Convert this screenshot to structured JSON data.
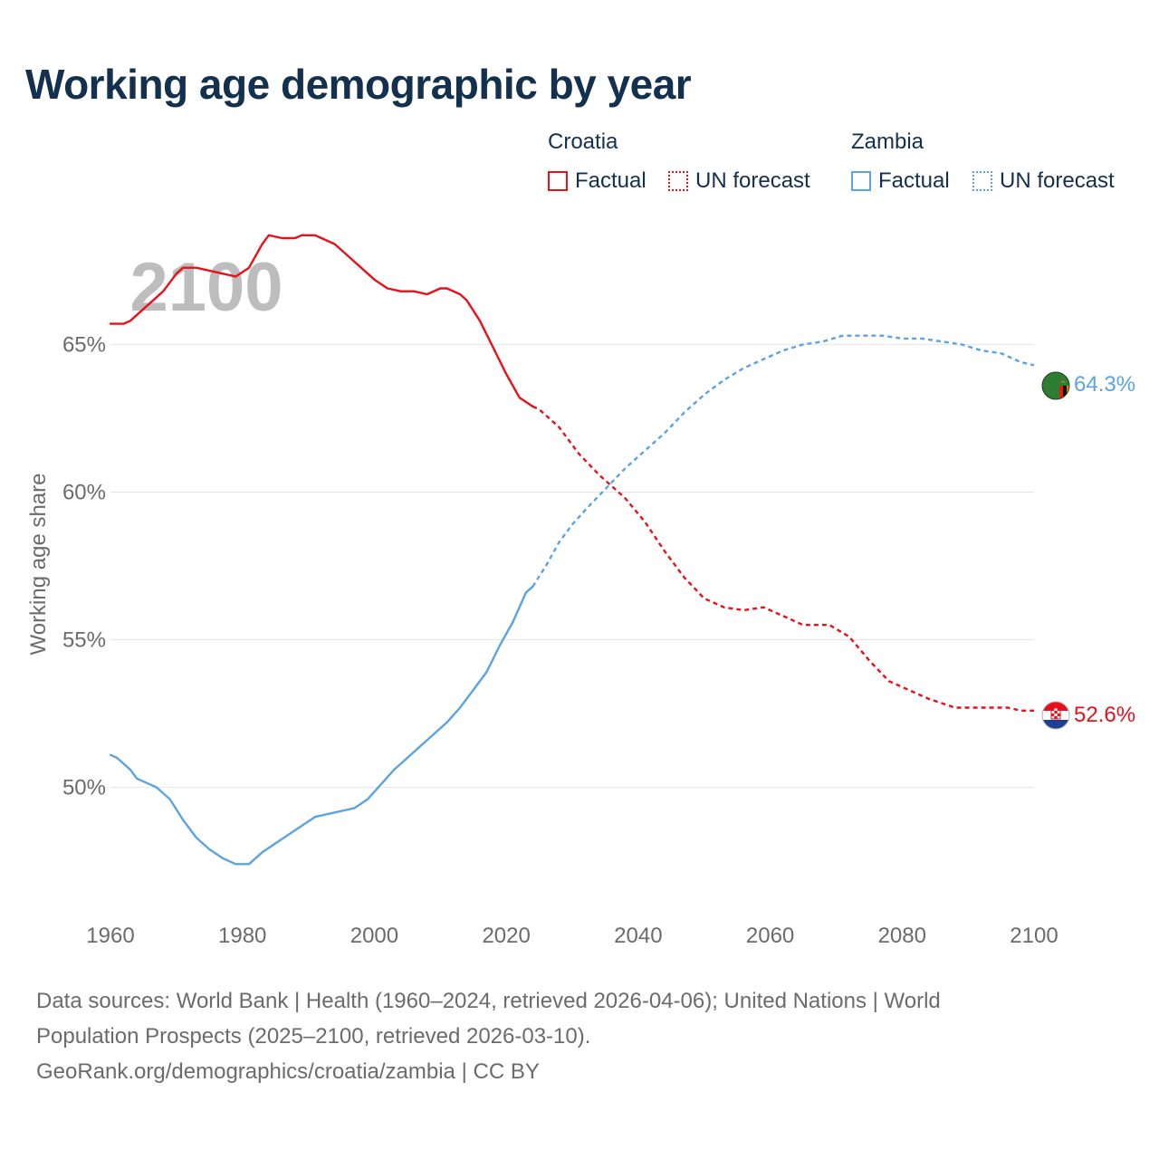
{
  "page": {
    "title": "Working age demographic by year"
  },
  "legend": {
    "groups": [
      {
        "country": "Croatia",
        "factual_label": "Factual",
        "forecast_label": "UN forecast",
        "color": "#e8111a"
      },
      {
        "country": "Zambia",
        "factual_label": "Factual",
        "forecast_label": "UN forecast",
        "color": "#5ba3e3"
      }
    ]
  },
  "chart_data": {
    "type": "line",
    "title": "Working age demographic by year",
    "ylabel": "Working age share",
    "xlabel": "",
    "year_label": "2100",
    "xlim": [
      1960,
      2100
    ],
    "ylim": [
      46.0,
      69.0
    ],
    "x_ticks": [
      1960,
      1980,
      2000,
      2020,
      2040,
      2060,
      2080,
      2100
    ],
    "x_tick_labels": [
      "1960",
      "1980",
      "2000",
      "2020",
      "2040",
      "2060",
      "2080",
      "2100"
    ],
    "y_ticks": [
      50,
      55,
      60,
      65
    ],
    "y_tick_labels": [
      "50%",
      "55%",
      "60%",
      "65%"
    ],
    "grid": "horizontal",
    "factual_end_year": 2024,
    "series": [
      {
        "name": "Croatia",
        "color": "#e8111a",
        "end_label": "52.6%",
        "flag": "croatia-flag-icon",
        "points": [
          [
            1960,
            65.7
          ],
          [
            1962,
            65.7
          ],
          [
            1963,
            65.8
          ],
          [
            1965,
            66.2
          ],
          [
            1968,
            66.8
          ],
          [
            1970,
            67.4
          ],
          [
            1971,
            67.6
          ],
          [
            1973,
            67.6
          ],
          [
            1975,
            67.5
          ],
          [
            1977,
            67.4
          ],
          [
            1979,
            67.3
          ],
          [
            1981,
            67.6
          ],
          [
            1983,
            68.4
          ],
          [
            1984,
            68.7
          ],
          [
            1986,
            68.6
          ],
          [
            1988,
            68.6
          ],
          [
            1989,
            68.7
          ],
          [
            1991,
            68.7
          ],
          [
            1992,
            68.6
          ],
          [
            1994,
            68.4
          ],
          [
            1996,
            68.0
          ],
          [
            1998,
            67.6
          ],
          [
            2000,
            67.2
          ],
          [
            2002,
            66.9
          ],
          [
            2004,
            66.8
          ],
          [
            2006,
            66.8
          ],
          [
            2008,
            66.7
          ],
          [
            2010,
            66.9
          ],
          [
            2011,
            66.9
          ],
          [
            2013,
            66.7
          ],
          [
            2014,
            66.5
          ],
          [
            2016,
            65.8
          ],
          [
            2018,
            64.9
          ],
          [
            2020,
            64.0
          ],
          [
            2022,
            63.2
          ],
          [
            2024,
            62.9
          ],
          [
            2025,
            62.8
          ],
          [
            2028,
            62.2
          ],
          [
            2031,
            61.3
          ],
          [
            2034,
            60.6
          ],
          [
            2038,
            59.8
          ],
          [
            2041,
            59.0
          ],
          [
            2044,
            58.0
          ],
          [
            2047,
            57.1
          ],
          [
            2050,
            56.4
          ],
          [
            2053,
            56.1
          ],
          [
            2056,
            56.0
          ],
          [
            2059,
            56.1
          ],
          [
            2062,
            55.8
          ],
          [
            2065,
            55.5
          ],
          [
            2069,
            55.5
          ],
          [
            2072,
            55.1
          ],
          [
            2075,
            54.3
          ],
          [
            2078,
            53.6
          ],
          [
            2081,
            53.3
          ],
          [
            2084,
            53.0
          ],
          [
            2088,
            52.7
          ],
          [
            2092,
            52.7
          ],
          [
            2096,
            52.7
          ],
          [
            2098,
            52.6
          ],
          [
            2100,
            52.6
          ]
        ]
      },
      {
        "name": "Zambia",
        "color": "#5ba3e3",
        "end_label": "64.3%",
        "flag": "zambia-flag-icon",
        "points": [
          [
            1960,
            51.1
          ],
          [
            1961,
            51.0
          ],
          [
            1963,
            50.6
          ],
          [
            1964,
            50.3
          ],
          [
            1966,
            50.1
          ],
          [
            1967,
            50.0
          ],
          [
            1969,
            49.6
          ],
          [
            1971,
            48.9
          ],
          [
            1973,
            48.3
          ],
          [
            1975,
            47.9
          ],
          [
            1977,
            47.6
          ],
          [
            1979,
            47.4
          ],
          [
            1981,
            47.4
          ],
          [
            1983,
            47.8
          ],
          [
            1985,
            48.1
          ],
          [
            1987,
            48.4
          ],
          [
            1989,
            48.7
          ],
          [
            1991,
            49.0
          ],
          [
            1993,
            49.1
          ],
          [
            1995,
            49.2
          ],
          [
            1997,
            49.3
          ],
          [
            1999,
            49.6
          ],
          [
            2001,
            50.1
          ],
          [
            2003,
            50.6
          ],
          [
            2005,
            51.0
          ],
          [
            2007,
            51.4
          ],
          [
            2009,
            51.8
          ],
          [
            2011,
            52.2
          ],
          [
            2013,
            52.7
          ],
          [
            2015,
            53.3
          ],
          [
            2017,
            53.9
          ],
          [
            2019,
            54.8
          ],
          [
            2021,
            55.6
          ],
          [
            2023,
            56.6
          ],
          [
            2024,
            56.8
          ],
          [
            2026,
            57.5
          ],
          [
            2028,
            58.3
          ],
          [
            2030,
            58.9
          ],
          [
            2032,
            59.4
          ],
          [
            2035,
            60.1
          ],
          [
            2038,
            60.8
          ],
          [
            2041,
            61.4
          ],
          [
            2044,
            62.0
          ],
          [
            2047,
            62.7
          ],
          [
            2050,
            63.3
          ],
          [
            2053,
            63.8
          ],
          [
            2056,
            64.2
          ],
          [
            2059,
            64.5
          ],
          [
            2062,
            64.8
          ],
          [
            2065,
            65.0
          ],
          [
            2068,
            65.1
          ],
          [
            2071,
            65.3
          ],
          [
            2074,
            65.3
          ],
          [
            2077,
            65.3
          ],
          [
            2080,
            65.2
          ],
          [
            2083,
            65.2
          ],
          [
            2086,
            65.1
          ],
          [
            2089,
            65.0
          ],
          [
            2092,
            64.8
          ],
          [
            2095,
            64.7
          ],
          [
            2098,
            64.4
          ],
          [
            2100,
            64.3
          ]
        ]
      }
    ]
  },
  "footer": {
    "sources_line1": "Data sources: World Bank | Health (1960–2024, retrieved 2026-04-06); United Nations | World",
    "sources_line2": "Population Prospects (2025–2100, retrieved 2026-03-10).",
    "link": "GeoRank.org/demographics/croatia/zambia",
    "separator": "|",
    "license": "CC BY"
  }
}
